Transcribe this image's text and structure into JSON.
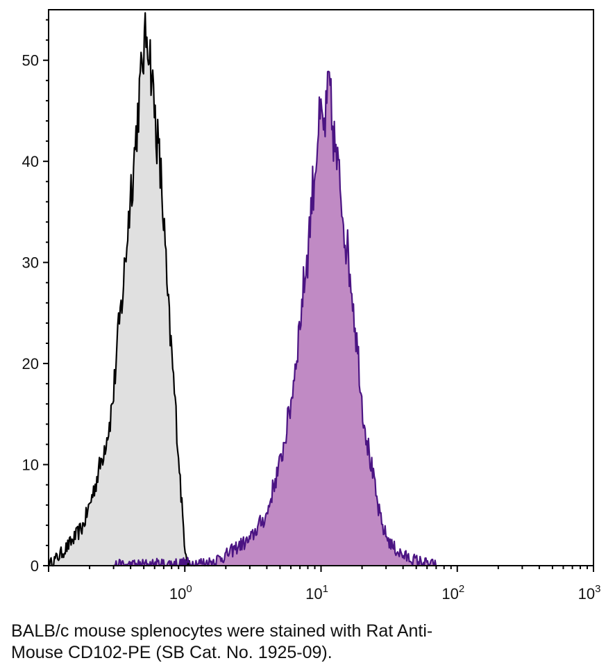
{
  "caption": {
    "line1": "BALB/c mouse splenocytes were stained with Rat Anti-",
    "line2": "Mouse CD102-PE (SB Cat. No. 1925-09)."
  },
  "chart_data": {
    "type": "area",
    "title": "",
    "xlabel": "",
    "ylabel": "",
    "xscale": "log",
    "xlim": [
      0.1,
      1000
    ],
    "ylim": [
      0,
      55
    ],
    "grid": false,
    "legend": "none",
    "x_ticks": [
      {
        "value": 1,
        "base": "10",
        "exp": "0"
      },
      {
        "value": 10,
        "base": "10",
        "exp": "1"
      },
      {
        "value": 100,
        "base": "10",
        "exp": "2"
      },
      {
        "value": 1000,
        "base": "10",
        "exp": "3"
      }
    ],
    "y_ticks": [
      "0",
      "10",
      "20",
      "30",
      "40",
      "50"
    ],
    "series": [
      {
        "color": "#000000",
        "fill": "#e0e0e0",
        "points": [
          [
            0.1,
            0
          ],
          [
            0.12,
            1
          ],
          [
            0.14,
            2
          ],
          [
            0.16,
            3
          ],
          [
            0.18,
            4
          ],
          [
            0.2,
            6
          ],
          [
            0.22,
            8
          ],
          [
            0.25,
            11
          ],
          [
            0.28,
            14
          ],
          [
            0.3,
            17
          ],
          [
            0.32,
            22
          ],
          [
            0.35,
            27
          ],
          [
            0.38,
            33
          ],
          [
            0.4,
            37
          ],
          [
            0.43,
            41
          ],
          [
            0.46,
            46
          ],
          [
            0.5,
            51
          ],
          [
            0.53,
            53
          ],
          [
            0.56,
            50
          ],
          [
            0.6,
            45
          ],
          [
            0.63,
            42
          ],
          [
            0.67,
            38
          ],
          [
            0.7,
            34
          ],
          [
            0.75,
            26
          ],
          [
            0.8,
            21
          ],
          [
            0.85,
            16
          ],
          [
            0.9,
            11
          ],
          [
            0.95,
            6
          ],
          [
            1.0,
            2
          ],
          [
            1.05,
            0.5
          ],
          [
            1.1,
            0
          ]
        ]
      },
      {
        "color": "#4b1483",
        "fill": "#c08ac4",
        "points": [
          [
            0.3,
            0
          ],
          [
            1.5,
            0.3
          ],
          [
            2.0,
            1
          ],
          [
            2.5,
            2
          ],
          [
            3.0,
            2.5
          ],
          [
            3.5,
            4
          ],
          [
            4.0,
            5
          ],
          [
            4.5,
            8
          ],
          [
            5.0,
            10
          ],
          [
            5.5,
            13
          ],
          [
            6.0,
            16
          ],
          [
            6.5,
            20
          ],
          [
            7.0,
            24
          ],
          [
            7.5,
            28
          ],
          [
            8.0,
            31
          ],
          [
            8.5,
            36
          ],
          [
            9.0,
            39
          ],
          [
            9.5,
            43
          ],
          [
            10,
            44
          ],
          [
            10.5,
            43
          ],
          [
            11,
            45
          ],
          [
            11.5,
            48
          ],
          [
            12,
            44
          ],
          [
            13,
            40
          ],
          [
            14,
            37
          ],
          [
            15,
            33
          ],
          [
            16,
            30
          ],
          [
            17,
            27
          ],
          [
            18,
            23
          ],
          [
            19,
            20
          ],
          [
            20,
            16
          ],
          [
            22,
            12
          ],
          [
            24,
            9
          ],
          [
            26,
            6
          ],
          [
            28,
            4
          ],
          [
            30,
            3
          ],
          [
            33,
            2
          ],
          [
            36,
            1.5
          ],
          [
            40,
            1
          ],
          [
            45,
            0.7
          ],
          [
            50,
            0.5
          ],
          [
            60,
            0.2
          ],
          [
            70,
            0
          ]
        ]
      }
    ]
  }
}
